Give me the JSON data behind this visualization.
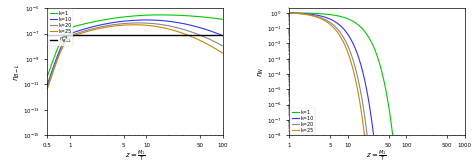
{
  "left": {
    "xlim": [
      0.5,
      100
    ],
    "ylim": [
      1e-15,
      1e-05
    ],
    "xlabel": "$z=\\frac{M_1}{T}$",
    "ylabel": "$\\eta_{B-L}$",
    "hline_value": 8e-08,
    "hline_label": "$\\eta_{B-L}^{eq}$",
    "k_values": [
      1,
      10,
      20,
      25
    ],
    "colors": [
      "#00cc00",
      "#3333ff",
      "#888888",
      "#cc8800"
    ],
    "legend_labels": [
      "k=1",
      "k=10",
      "k=20",
      "k=25"
    ],
    "peak_vals": [
      3e-06,
      1.2e-06,
      7e-07,
      5e-07
    ],
    "peak_locs": [
      15.0,
      10.0,
      8.0,
      7.0
    ],
    "sigma_r": [
      0.55,
      0.45,
      0.42,
      0.4
    ],
    "sigma_f": [
      0.65,
      0.42,
      0.38,
      0.36
    ]
  },
  "right": {
    "xlim": [
      1,
      1000
    ],
    "ylim": [
      1e-08,
      2
    ],
    "xlabel": "$z=\\frac{M_1}{T}$",
    "ylabel": "$\\eta_N$",
    "k_values": [
      1,
      10,
      20,
      25
    ],
    "colors": [
      "#00cc00",
      "#3333ff",
      "#888888",
      "#cc8800"
    ],
    "legend_labels": [
      "k=1",
      "k=10",
      "k=20",
      "k=25"
    ],
    "decay": [
      0.018,
      0.065,
      0.1,
      0.12
    ],
    "power": [
      1.7,
      1.7,
      1.7,
      1.7
    ]
  }
}
